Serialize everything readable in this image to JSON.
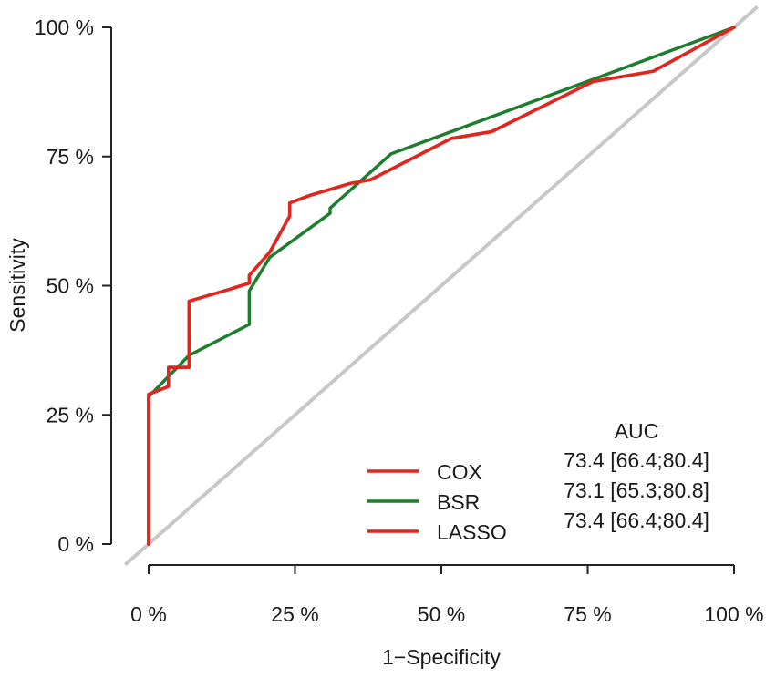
{
  "chart_data": {
    "type": "line",
    "title": "",
    "xlabel": "1−Specificity",
    "ylabel": "Sensitivity",
    "xlim": [
      0,
      100
    ],
    "ylim": [
      0,
      100
    ],
    "x_ticks": [
      {
        "value": 0,
        "label": "0 %"
      },
      {
        "value": 25,
        "label": "25 %"
      },
      {
        "value": 50,
        "label": "50 %"
      },
      {
        "value": 75,
        "label": "75 %"
      },
      {
        "value": 100,
        "label": "100 %"
      }
    ],
    "y_ticks": [
      {
        "value": 0,
        "label": "0 %"
      },
      {
        "value": 25,
        "label": "25 %"
      },
      {
        "value": 50,
        "label": "50 %"
      },
      {
        "value": 75,
        "label": "75 %"
      },
      {
        "value": 100,
        "label": "100 %"
      }
    ],
    "reference_line": {
      "name": "chance-diagonal",
      "color": "#c8c8c8",
      "points": [
        [
          -4,
          -4
        ],
        [
          104,
          104
        ]
      ]
    },
    "auc_header": "AUC",
    "series": [
      {
        "name": "COX",
        "color": "#e0261f",
        "auc": "73.4 [66.4;80.4]",
        "points": [
          [
            0,
            0
          ],
          [
            0,
            29
          ],
          [
            3.4,
            30.5
          ],
          [
            3.4,
            34.2
          ],
          [
            6.9,
            34.2
          ],
          [
            6.9,
            47
          ],
          [
            13.8,
            49.3
          ],
          [
            17.2,
            50.5
          ],
          [
            17.2,
            52
          ],
          [
            20.7,
            56.5
          ],
          [
            24.1,
            63.5
          ],
          [
            24.1,
            66
          ],
          [
            27.6,
            67.5
          ],
          [
            34.5,
            69.8
          ],
          [
            37.9,
            70.5
          ],
          [
            51.7,
            78.5
          ],
          [
            58.6,
            79.8
          ],
          [
            75.9,
            89.5
          ],
          [
            86.2,
            91.5
          ],
          [
            100,
            100
          ]
        ]
      },
      {
        "name": "BSR",
        "color": "#1e7d2e",
        "auc": "73.1 [65.3;80.8]",
        "points": [
          [
            0,
            0
          ],
          [
            0,
            28.5
          ],
          [
            6.9,
            36.5
          ],
          [
            17.2,
            42.5
          ],
          [
            17.2,
            49
          ],
          [
            20.7,
            55.5
          ],
          [
            31,
            64
          ],
          [
            31,
            65
          ],
          [
            41.4,
            75.5
          ],
          [
            100,
            100
          ]
        ]
      },
      {
        "name": "LASSO",
        "color": "#e0261f",
        "auc": "73.4 [66.4;80.4]",
        "points": [
          [
            0,
            0
          ],
          [
            0,
            29
          ],
          [
            3.4,
            30.5
          ],
          [
            3.4,
            34.2
          ],
          [
            6.9,
            34.2
          ],
          [
            6.9,
            47
          ],
          [
            13.8,
            49.3
          ],
          [
            17.2,
            50.5
          ],
          [
            17.2,
            52
          ],
          [
            20.7,
            56.5
          ],
          [
            24.1,
            63.5
          ],
          [
            24.1,
            66
          ],
          [
            27.6,
            67.5
          ],
          [
            34.5,
            69.8
          ],
          [
            37.9,
            70.5
          ],
          [
            51.7,
            78.5
          ],
          [
            58.6,
            79.8
          ],
          [
            75.9,
            89.5
          ],
          [
            86.2,
            91.5
          ],
          [
            100,
            100
          ]
        ]
      }
    ],
    "legend_position": "bottom-right"
  }
}
